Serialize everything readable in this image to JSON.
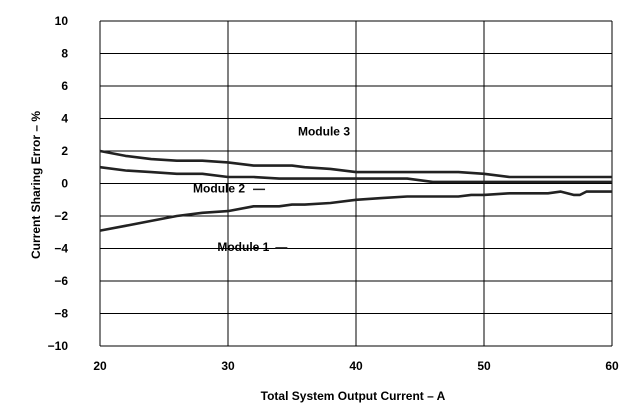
{
  "chart_data": {
    "type": "line",
    "title": "",
    "xlabel": "Total System Output Current – A",
    "ylabel": "Current Sharing Error – %",
    "xlim": [
      20,
      60
    ],
    "ylim": [
      -10,
      10
    ],
    "xticks": [
      20,
      30,
      40,
      50,
      60
    ],
    "xtick_labels": [
      "20",
      "30",
      "40",
      "50",
      "60"
    ],
    "yticks": [
      -10,
      -8,
      -6,
      -4,
      -2,
      0,
      2,
      4,
      6,
      8,
      10
    ],
    "ytick_labels": [
      "−10",
      "−8",
      "−6",
      "−4",
      "−2",
      "0",
      "2",
      "4",
      "6",
      "8",
      "10"
    ],
    "grid": true,
    "legend": "none",
    "colors": {
      "line": "#222222",
      "grid": "#000000",
      "text": "#000000"
    },
    "series": [
      {
        "name": "Module 3",
        "x": [
          20,
          22,
          24,
          26,
          28,
          30,
          32,
          34,
          35,
          36,
          38,
          40,
          42,
          44,
          46,
          48,
          50,
          52,
          54,
          56,
          58,
          60
        ],
        "y": [
          2.0,
          1.7,
          1.5,
          1.4,
          1.4,
          1.3,
          1.1,
          1.1,
          1.1,
          1.0,
          0.9,
          0.7,
          0.7,
          0.7,
          0.7,
          0.7,
          0.6,
          0.4,
          0.4,
          0.4,
          0.4,
          0.4
        ]
      },
      {
        "name": "Module 2",
        "x": [
          20,
          22,
          24,
          26,
          28,
          30,
          32,
          34,
          36,
          38,
          40,
          42,
          44,
          46,
          48,
          50,
          52,
          54,
          56,
          58,
          60
        ],
        "y": [
          1.0,
          0.8,
          0.7,
          0.6,
          0.6,
          0.4,
          0.4,
          0.3,
          0.3,
          0.3,
          0.3,
          0.3,
          0.3,
          0.1,
          0.1,
          0.1,
          0.1,
          0.1,
          0.1,
          0.1,
          0.1
        ]
      },
      {
        "name": "Module 1",
        "x": [
          20,
          22,
          24,
          26,
          28,
          30,
          32,
          34,
          35,
          36,
          38,
          40,
          42,
          44,
          46,
          48,
          49,
          50,
          52,
          54,
          55,
          56,
          57,
          57.5,
          58,
          60
        ],
        "y": [
          -2.9,
          -2.6,
          -2.3,
          -2.0,
          -1.8,
          -1.7,
          -1.4,
          -1.4,
          -1.3,
          -1.3,
          -1.2,
          -1.0,
          -0.9,
          -0.8,
          -0.8,
          -0.8,
          -0.7,
          -0.7,
          -0.6,
          -0.6,
          -0.6,
          -0.5,
          -0.7,
          -0.7,
          -0.5,
          -0.5
        ]
      }
    ],
    "annotations": [
      {
        "text": "Module 3",
        "x": 37.5,
        "y": 3.2,
        "series": "Module 3"
      },
      {
        "text": "Module 2",
        "x": 29.3,
        "y": -0.3,
        "series": "Module 2"
      },
      {
        "text": "Module 1",
        "x": 31.2,
        "y": -3.9,
        "series": "Module 1"
      }
    ]
  }
}
